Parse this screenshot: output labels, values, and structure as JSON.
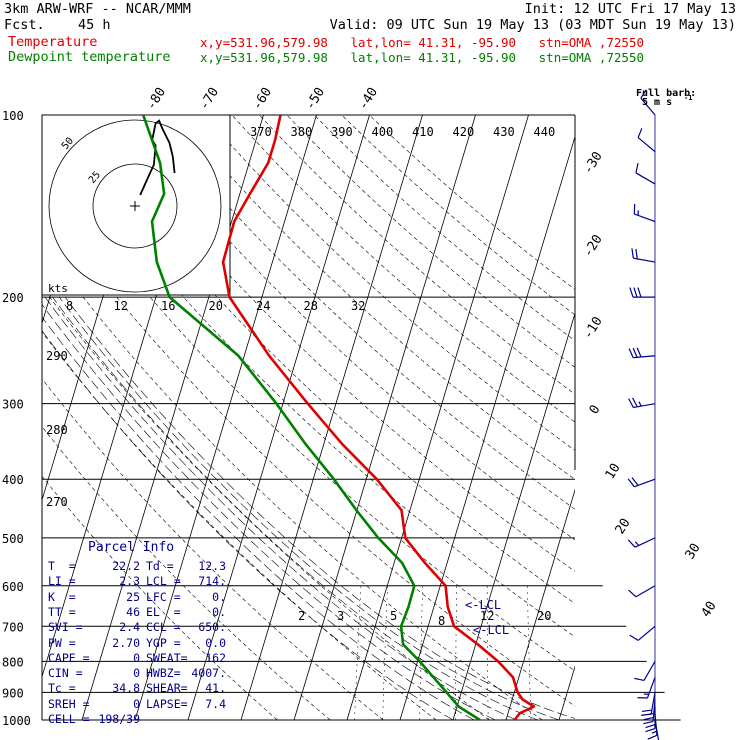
{
  "header": {
    "model": "3km ARW-WRF -- NCAR/MMM",
    "init": "Init: 12 UTC Fri 17 May 13",
    "fcst_label": "Fcst.",
    "fcst_value": "45 h",
    "valid": "Valid: 09 UTC Sun 19 May 13 (03 MDT Sun 19 May 13)",
    "temp_label": "Temperature",
    "temp_info": "x,y=531.96,579.98   lat,lon= 41.31, -95.90   stn=OMA ,72550",
    "dew_label": "Dewpoint temperature",
    "dew_info": "x,y=531.96,579.98   lat,lon= 41.31, -95.90   stn=OMA ,72550"
  },
  "colors": {
    "temperature": "#e00000",
    "dewpoint": "#008000",
    "wind": "#00008b",
    "grid": "#000000"
  },
  "chart_data": {
    "type": "skew-t",
    "pressure_levels": [
      100,
      200,
      300,
      400,
      500,
      600,
      700,
      800,
      900,
      1000
    ],
    "pressure_labels": [
      "100",
      "200",
      "300",
      "400",
      "500",
      "600",
      "700",
      "800",
      "900",
      "1000"
    ],
    "top_isotherm_labels": [
      "-80",
      "-70",
      "-60",
      "-50",
      "-40"
    ],
    "right_isotherm_labels": [
      "-30",
      "-20",
      "-10",
      "0",
      "10",
      "20",
      "30",
      "40"
    ],
    "theta_labels": [
      "370",
      "380",
      "390",
      "400",
      "410",
      "420",
      "430",
      "440"
    ],
    "dry_adiabat_side_labels": [
      "290",
      "280",
      "270"
    ],
    "mixing_ratio_labels": [
      "2",
      "3",
      "5",
      "8",
      "12",
      "20"
    ],
    "hodograph_speed_labels": [
      "8",
      "12",
      "16",
      "20",
      "24",
      "28",
      "32"
    ],
    "hodograph_ring_labels": [
      "25",
      "50"
    ],
    "hodograph_units": "kts",
    "lcl_markers": [
      "<-LCL",
      "<-LCL"
    ],
    "wind_legend": {
      "title": "Full barb:",
      "value": "5 m s",
      "exponent": "-1"
    },
    "temperature": {
      "name": "Temperature",
      "points": [
        {
          "p": 1000,
          "t": 21.6
        },
        {
          "p": 975,
          "t": 22.2
        },
        {
          "p": 950,
          "t": 24.5
        },
        {
          "p": 925,
          "t": 22.0
        },
        {
          "p": 900,
          "t": 20.6
        },
        {
          "p": 850,
          "t": 18.9
        },
        {
          "p": 800,
          "t": 15.2
        },
        {
          "p": 750,
          "t": 10.4
        },
        {
          "p": 700,
          "t": 4.9
        },
        {
          "p": 650,
          "t": 2.6
        },
        {
          "p": 600,
          "t": 1.0
        },
        {
          "p": 550,
          "t": -4.2
        },
        {
          "p": 500,
          "t": -9.3
        },
        {
          "p": 450,
          "t": -11.6
        },
        {
          "p": 400,
          "t": -18.0
        },
        {
          "p": 350,
          "t": -26.5
        },
        {
          "p": 300,
          "t": -35.3
        },
        {
          "p": 250,
          "t": -45.3
        },
        {
          "p": 200,
          "t": -56.1
        },
        {
          "p": 175,
          "t": -59.3
        },
        {
          "p": 150,
          "t": -59.5
        },
        {
          "p": 135,
          "t": -58.1
        },
        {
          "p": 120,
          "t": -56.4
        },
        {
          "p": 110,
          "t": -56.4
        },
        {
          "p": 100,
          "t": -56.8
        }
      ]
    },
    "dewpoint": {
      "name": "Dewpoint temperature",
      "points": [
        {
          "p": 1000,
          "t": 15.1
        },
        {
          "p": 950,
          "t": 10.3
        },
        {
          "p": 900,
          "t": 7.2
        },
        {
          "p": 850,
          "t": 3.9
        },
        {
          "p": 800,
          "t": 0.4
        },
        {
          "p": 750,
          "t": -3.7
        },
        {
          "p": 700,
          "t": -5.1
        },
        {
          "p": 650,
          "t": -4.8
        },
        {
          "p": 600,
          "t": -4.9
        },
        {
          "p": 550,
          "t": -8.5
        },
        {
          "p": 500,
          "t": -14.4
        },
        {
          "p": 450,
          "t": -20.1
        },
        {
          "p": 400,
          "t": -26.1
        },
        {
          "p": 350,
          "t": -33.4
        },
        {
          "p": 300,
          "t": -41.2
        },
        {
          "p": 250,
          "t": -51.1
        },
        {
          "p": 200,
          "t": -67.4
        },
        {
          "p": 175,
          "t": -71.8
        },
        {
          "p": 150,
          "t": -75.0
        },
        {
          "p": 135,
          "t": -74.3
        },
        {
          "p": 120,
          "t": -76.8
        },
        {
          "p": 100,
          "t": -82.7
        }
      ]
    },
    "wind_barbs": [
      {
        "p": 1000,
        "dir": 170,
        "spd": 3
      },
      {
        "p": 975,
        "dir": 175,
        "spd": 8
      },
      {
        "p": 950,
        "dir": 180,
        "spd": 12
      },
      {
        "p": 925,
        "dir": 185,
        "spd": 13
      },
      {
        "p": 900,
        "dir": 190,
        "spd": 11
      },
      {
        "p": 850,
        "dir": 200,
        "spd": 8
      },
      {
        "p": 800,
        "dir": 210,
        "spd": 6
      },
      {
        "p": 700,
        "dir": 230,
        "spd": 5
      },
      {
        "p": 600,
        "dir": 240,
        "spd": 7
      },
      {
        "p": 500,
        "dir": 245,
        "spd": 9
      },
      {
        "p": 400,
        "dir": 250,
        "spd": 11
      },
      {
        "p": 300,
        "dir": 260,
        "spd": 14
      },
      {
        "p": 250,
        "dir": 265,
        "spd": 15
      },
      {
        "p": 200,
        "dir": 270,
        "spd": 16
      },
      {
        "p": 175,
        "dir": 280,
        "spd": 10
      },
      {
        "p": 150,
        "dir": 290,
        "spd": 9
      },
      {
        "p": 130,
        "dir": 300,
        "spd": 7
      },
      {
        "p": 115,
        "dir": 310,
        "spd": 6
      },
      {
        "p": 100,
        "dir": 320,
        "spd": 5
      }
    ],
    "hodograph": [
      {
        "u": 3,
        "v": 4
      },
      {
        "u": 8,
        "v": 11
      },
      {
        "u": 11,
        "v": 15
      },
      {
        "u": 12,
        "v": 22
      },
      {
        "u": 10,
        "v": 24
      },
      {
        "u": 12,
        "v": 30
      },
      {
        "u": 14,
        "v": 31
      },
      {
        "u": 16,
        "v": 28
      },
      {
        "u": 20,
        "v": 23
      },
      {
        "u": 22,
        "v": 18
      },
      {
        "u": 23,
        "v": 12
      }
    ]
  },
  "parcel": {
    "title": "Parcel Info",
    "rows": [
      [
        "T  =",
        "22.2",
        "Td =",
        "12.3"
      ],
      [
        "LI =",
        "2.3",
        "LCL =",
        "714."
      ],
      [
        "K  =",
        "25",
        "LFC =",
        "0."
      ],
      [
        "TT =",
        "46",
        "EL  =",
        "0."
      ],
      [
        "SVI =",
        "2.4",
        "CCL =",
        "650."
      ],
      [
        "PW =",
        "2.70",
        "YGP =",
        "0.0"
      ],
      [
        "CAPE =",
        "0",
        "SWEAT=",
        "162"
      ],
      [
        "CIN =",
        "0",
        "HWBZ=",
        "4007."
      ],
      [
        "Tc =",
        "34.8",
        "SHEAR=",
        "41."
      ],
      [
        "SREH =",
        "0",
        "LAPSE=",
        "7.4"
      ],
      [
        "CELL =",
        "198/39",
        "",
        ""
      ]
    ]
  }
}
